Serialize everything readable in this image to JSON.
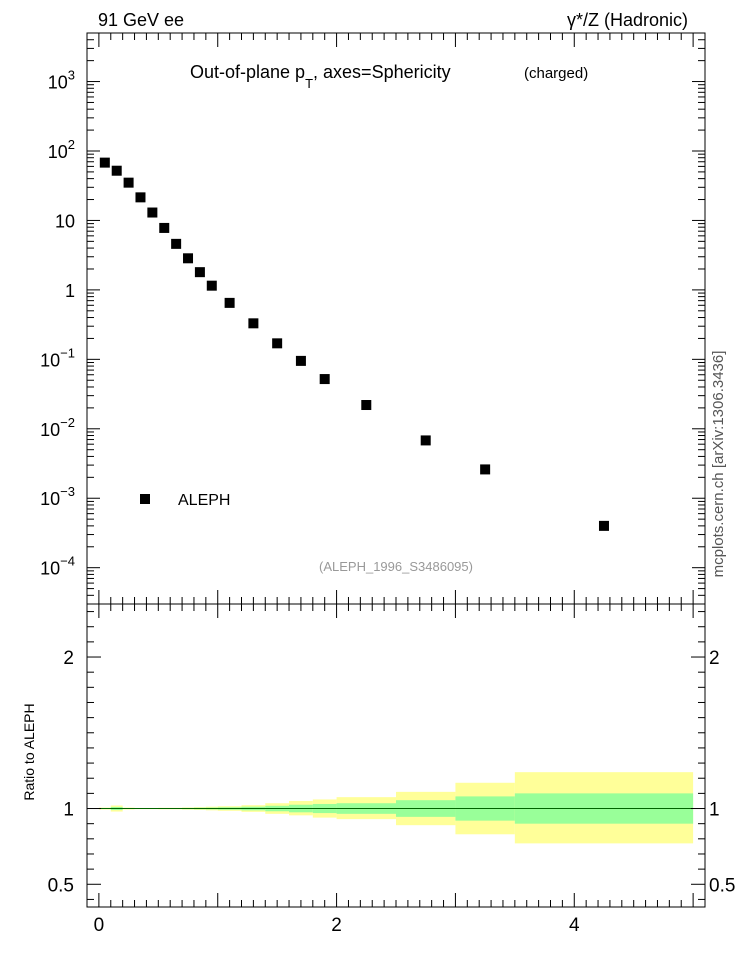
{
  "header": {
    "left": "91 GeV ee",
    "right": "γ*/Z (Hadronic)"
  },
  "plot_title": {
    "main": "Out-of-plane p",
    "sub": "T",
    "rest": ", axes=Sphericity",
    "tag": "(charged)"
  },
  "analysis_id": "(ALEPH_1996_S3486095)",
  "side_label": "mcplots.cern.ch [arXiv:1306.3436]",
  "ratio_ylabel": "Ratio to ALEPH",
  "colors": {
    "markers": "#000000",
    "band_inner": "#99ff99",
    "band_outer": "#ffff99",
    "side_text": "#555555",
    "analysis_text": "#999999"
  },
  "chart_data": [
    {
      "type": "scatter",
      "panel": "main",
      "yscale": "log",
      "ylim": [
        3e-05,
        5000
      ],
      "xlim": [
        -0.1,
        5.1
      ],
      "ytick_labels": [
        {
          "value": 0.0001,
          "base": "10",
          "exp": "−4"
        },
        {
          "value": 0.001,
          "base": "10",
          "exp": "−3"
        },
        {
          "value": 0.01,
          "base": "10",
          "exp": "−2"
        },
        {
          "value": 0.1,
          "base": "10",
          "exp": "−1"
        },
        {
          "value": 1,
          "base": "1",
          "exp": ""
        },
        {
          "value": 10,
          "base": "10",
          "exp": ""
        },
        {
          "value": 100,
          "base": "10",
          "exp": "2"
        },
        {
          "value": 1000,
          "base": "10",
          "exp": "3"
        }
      ],
      "legend": "bottom-left",
      "series": [
        {
          "name": "ALEPH",
          "x": [
            0.05,
            0.15,
            0.25,
            0.35,
            0.45,
            0.55,
            0.65,
            0.75,
            0.85,
            0.95,
            1.1,
            1.3,
            1.5,
            1.7,
            1.9,
            2.25,
            2.75,
            3.25,
            4.25
          ],
          "y": [
            68,
            52,
            35,
            21.5,
            13,
            7.8,
            4.6,
            2.85,
            1.8,
            1.15,
            0.65,
            0.33,
            0.17,
            0.095,
            0.052,
            0.022,
            0.0068,
            0.0026,
            0.0004
          ]
        }
      ]
    },
    {
      "type": "area",
      "panel": "ratio",
      "ylabel": "Ratio to ALEPH",
      "ylim": [
        0.35,
        2.35
      ],
      "xlim": [
        -0.1,
        5.1
      ],
      "yticks": [
        0.5,
        1,
        2
      ],
      "ytick_labels": [
        "0.5",
        "1",
        "2"
      ],
      "xticks": [
        0,
        2,
        4
      ],
      "xtick_labels": [
        "0",
        "2",
        "4"
      ],
      "bins": [
        {
          "x0": 0.0,
          "x1": 0.1,
          "inner": [
            0.997,
            1.003
          ],
          "outer": [
            0.994,
            1.006
          ]
        },
        {
          "x0": 0.1,
          "x1": 0.2,
          "inner": [
            0.99,
            1.01
          ],
          "outer": [
            0.98,
            1.02
          ]
        },
        {
          "x0": 0.2,
          "x1": 0.3,
          "inner": [
            0.997,
            1.003
          ],
          "outer": [
            0.994,
            1.006
          ]
        },
        {
          "x0": 0.3,
          "x1": 0.4,
          "inner": [
            0.998,
            1.002
          ],
          "outer": [
            0.996,
            1.004
          ]
        },
        {
          "x0": 0.4,
          "x1": 0.5,
          "inner": [
            0.998,
            1.002
          ],
          "outer": [
            0.996,
            1.004
          ]
        },
        {
          "x0": 0.5,
          "x1": 0.6,
          "inner": [
            0.997,
            1.003
          ],
          "outer": [
            0.995,
            1.005
          ]
        },
        {
          "x0": 0.6,
          "x1": 0.7,
          "inner": [
            0.997,
            1.003
          ],
          "outer": [
            0.995,
            1.005
          ]
        },
        {
          "x0": 0.7,
          "x1": 0.8,
          "inner": [
            0.996,
            1.004
          ],
          "outer": [
            0.993,
            1.007
          ]
        },
        {
          "x0": 0.8,
          "x1": 0.9,
          "inner": [
            0.995,
            1.005
          ],
          "outer": [
            0.991,
            1.009
          ]
        },
        {
          "x0": 0.9,
          "x1": 1.0,
          "inner": [
            0.994,
            1.006
          ],
          "outer": [
            0.988,
            1.012
          ]
        },
        {
          "x0": 1.0,
          "x1": 1.2,
          "inner": [
            0.992,
            1.008
          ],
          "outer": [
            0.985,
            1.015
          ]
        },
        {
          "x0": 1.2,
          "x1": 1.4,
          "inner": [
            0.988,
            1.012
          ],
          "outer": [
            0.978,
            1.022
          ]
        },
        {
          "x0": 1.4,
          "x1": 1.6,
          "inner": [
            0.982,
            1.018
          ],
          "outer": [
            0.965,
            1.035
          ]
        },
        {
          "x0": 1.6,
          "x1": 1.8,
          "inner": [
            0.975,
            1.025
          ],
          "outer": [
            0.955,
            1.05
          ]
        },
        {
          "x0": 1.8,
          "x1": 2.0,
          "inner": [
            0.97,
            1.03
          ],
          "outer": [
            0.94,
            1.06
          ]
        },
        {
          "x0": 2.0,
          "x1": 2.5,
          "inner": [
            0.965,
            1.035
          ],
          "outer": [
            0.93,
            1.075
          ]
        },
        {
          "x0": 2.5,
          "x1": 3.0,
          "inner": [
            0.945,
            1.055
          ],
          "outer": [
            0.89,
            1.11
          ]
        },
        {
          "x0": 3.0,
          "x1": 3.5,
          "inner": [
            0.92,
            1.08
          ],
          "outer": [
            0.83,
            1.17
          ]
        },
        {
          "x0": 3.5,
          "x1": 5.0,
          "inner": [
            0.9,
            1.1
          ],
          "outer": [
            0.77,
            1.24
          ]
        }
      ]
    }
  ]
}
